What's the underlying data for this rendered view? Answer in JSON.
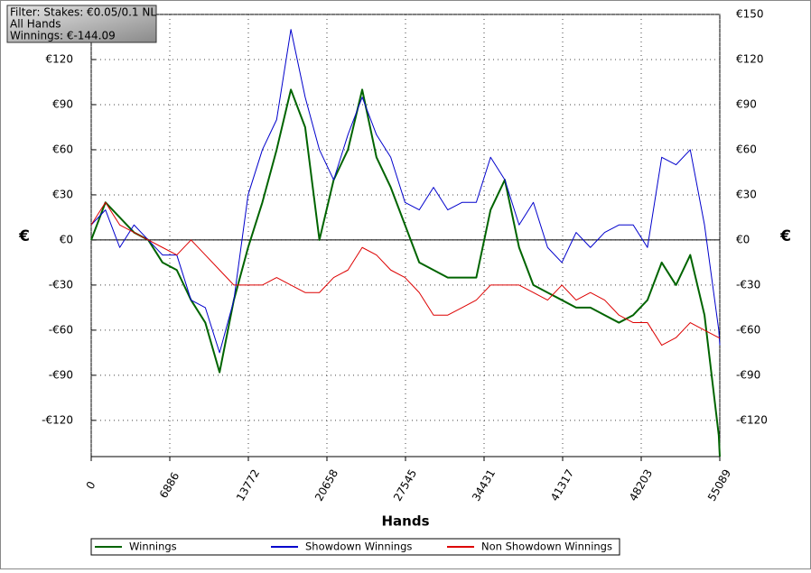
{
  "chart_data": {
    "type": "line",
    "info": [
      "Filter: Stakes: €0.05/0.1 NL",
      "All Hands",
      "Winnings: €-144.09"
    ],
    "y_label": "€",
    "y2_label": "€",
    "x_label": "Hands",
    "xlim": [
      0,
      55089
    ],
    "xticks": [
      0,
      6886,
      13772,
      20658,
      27545,
      34431,
      41317,
      48203,
      55089
    ],
    "ylim": [
      -144.09,
      150
    ],
    "yticks": [
      {
        "value": -120,
        "label": "-€120"
      },
      {
        "value": -90,
        "label": "-€90"
      },
      {
        "value": -60,
        "label": "-€60"
      },
      {
        "value": -30,
        "label": "-€30"
      },
      {
        "value": 0,
        "label": "€0"
      },
      {
        "value": 30,
        "label": "€30"
      },
      {
        "value": 60,
        "label": "€60"
      },
      {
        "value": 90,
        "label": "€90"
      },
      {
        "value": 120,
        "label": "€120"
      },
      {
        "value": 150,
        "label": "€150"
      }
    ],
    "grid": true,
    "x": [
      0,
      1250,
      2500,
      3750,
      5000,
      6250,
      7500,
      8750,
      10000,
      11250,
      12500,
      13750,
      15000,
      16250,
      17500,
      18750,
      20000,
      21250,
      22500,
      23750,
      25000,
      26250,
      27500,
      28750,
      30000,
      31250,
      32500,
      33750,
      35000,
      36250,
      37500,
      38750,
      40000,
      41250,
      42500,
      43750,
      45000,
      46250,
      47500,
      48750,
      50000,
      51250,
      52500,
      53750,
      55000,
      55089
    ],
    "series": [
      {
        "name": "Winnings",
        "color": "#006400",
        "width": 2,
        "values": [
          0,
          25,
          15,
          5,
          0,
          -15,
          -20,
          -40,
          -55,
          -88,
          -40,
          -5,
          25,
          60,
          100,
          75,
          0,
          40,
          60,
          100,
          55,
          35,
          10,
          -15,
          -20,
          -25,
          -25,
          -25,
          20,
          40,
          -5,
          -30,
          -35,
          -40,
          -45,
          -45,
          -50,
          -55,
          -50,
          -40,
          -15,
          -30,
          -10,
          -50,
          -130,
          -144.09
        ]
      },
      {
        "name": "Showdown Winnings",
        "color": "#0000cc",
        "width": 1,
        "values": [
          10,
          20,
          -5,
          10,
          0,
          -10,
          -10,
          -40,
          -45,
          -75,
          -40,
          30,
          60,
          80,
          140,
          95,
          60,
          40,
          70,
          95,
          70,
          55,
          25,
          20,
          35,
          20,
          25,
          25,
          55,
          40,
          10,
          25,
          -5,
          -15,
          5,
          -5,
          5,
          10,
          10,
          -5,
          55,
          50,
          60,
          10,
          -60,
          -70
        ]
      },
      {
        "name": "Non Showdown Winnings",
        "color": "#dd0000",
        "width": 1,
        "values": [
          10,
          25,
          10,
          5,
          0,
          -5,
          -10,
          0,
          -10,
          -20,
          -30,
          -30,
          -30,
          -25,
          -30,
          -35,
          -35,
          -25,
          -20,
          -5,
          -10,
          -20,
          -25,
          -35,
          -50,
          -50,
          -45,
          -40,
          -30,
          -30,
          -30,
          -35,
          -40,
          -30,
          -40,
          -35,
          -40,
          -50,
          -55,
          -55,
          -70,
          -65,
          -55,
          -60,
          -65,
          -65
        ]
      }
    ]
  }
}
